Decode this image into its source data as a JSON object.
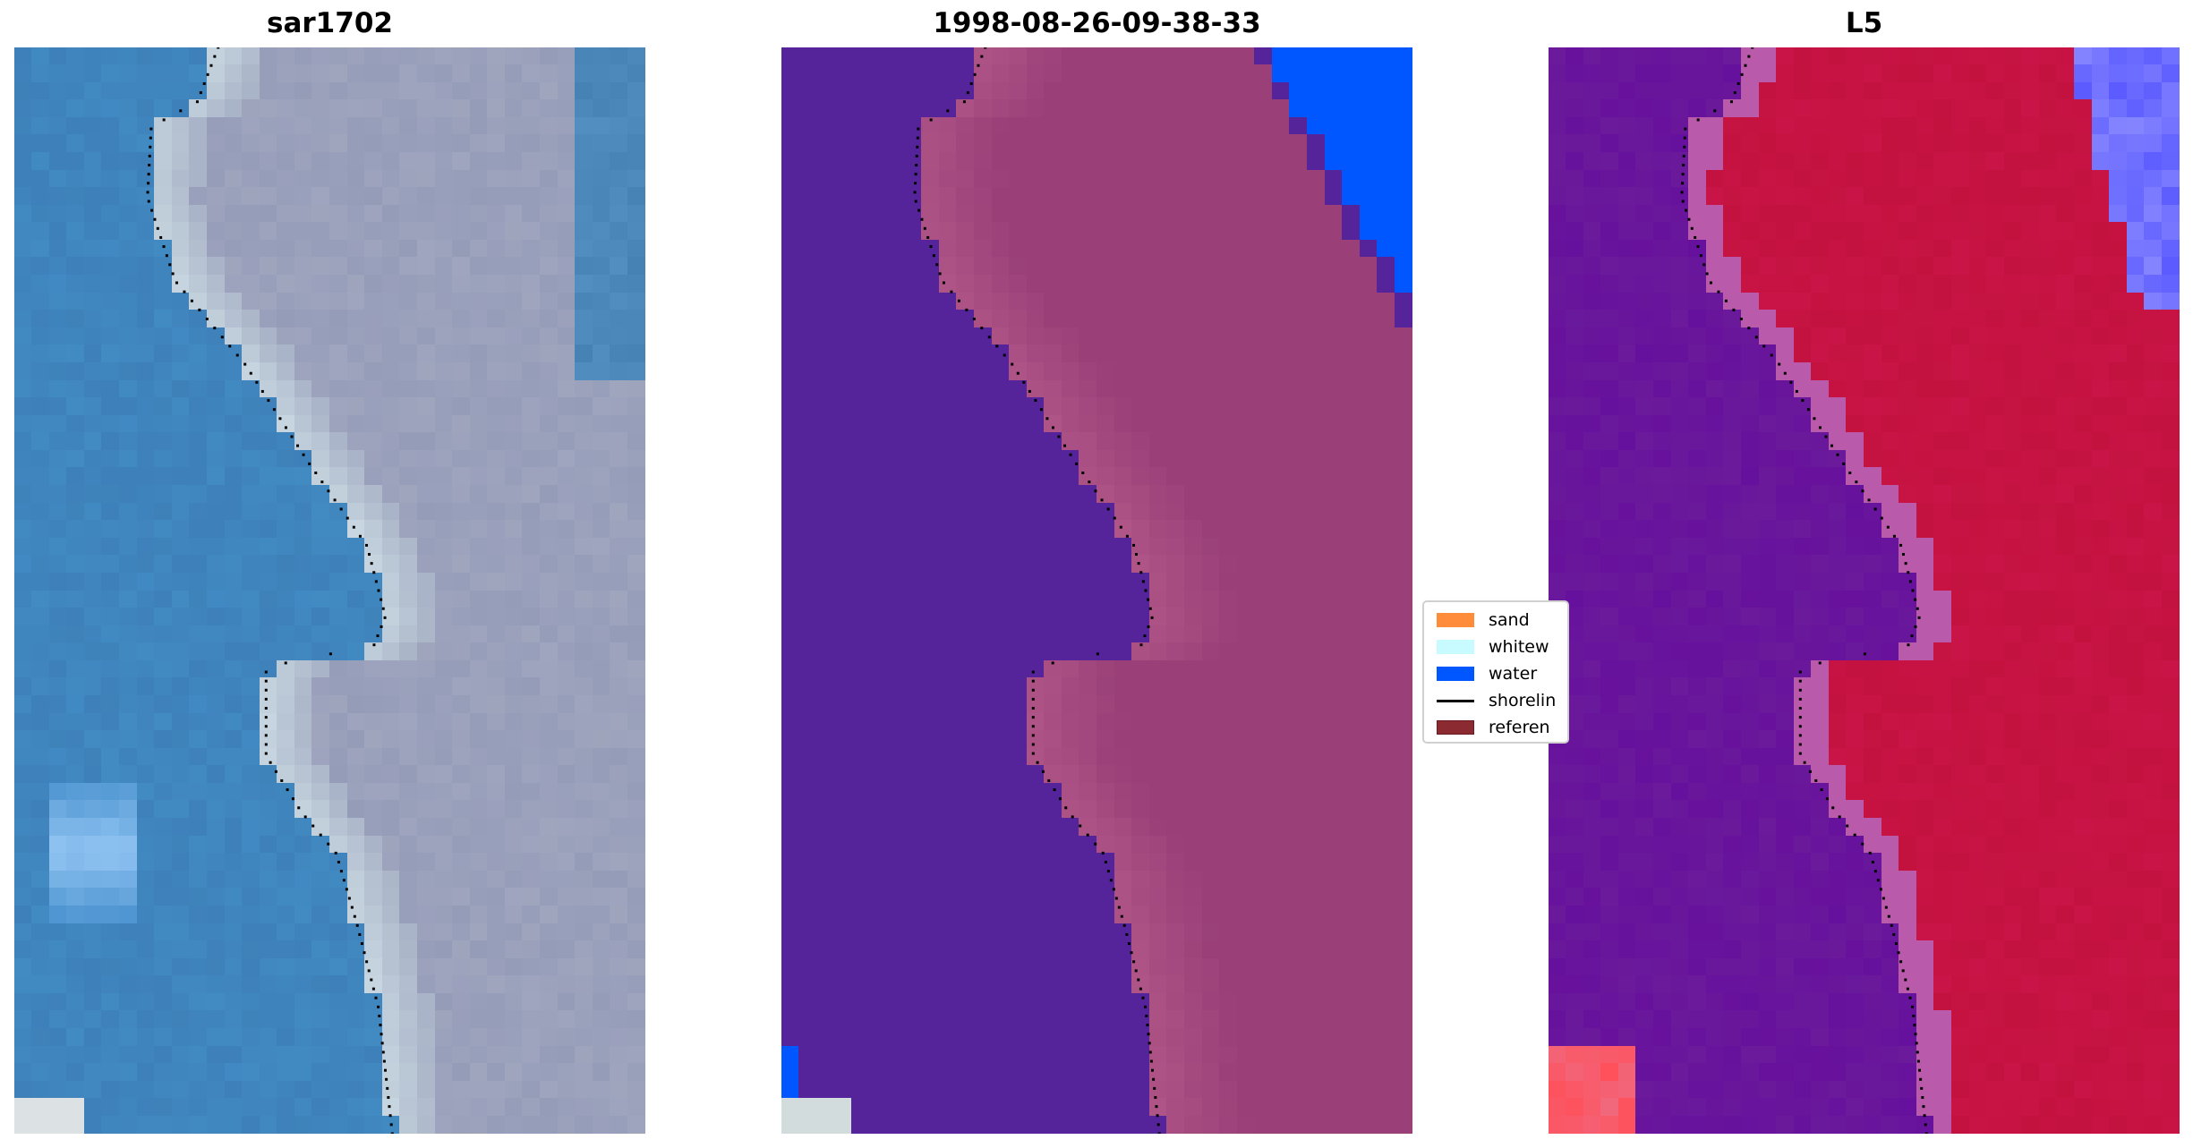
{
  "panels": [
    {
      "title": "sar1702",
      "kind": "rgb"
    },
    {
      "title": "1998-08-26-09-38-33",
      "kind": "classified"
    },
    {
      "title": "L5",
      "kind": "index"
    }
  ],
  "legend": {
    "items": [
      {
        "label": "sand",
        "color": "#ff8c3a"
      },
      {
        "label": "whitew",
        "color": "#c8fbff"
      },
      {
        "label": "water",
        "color": "#0057ff"
      },
      {
        "label": "shorelin",
        "color": "#000000",
        "type": "line"
      },
      {
        "label": "referen",
        "color": "#8b2a30"
      }
    ]
  },
  "colors": {
    "water_class": "#55249a",
    "sand_class": "#9a3f78",
    "ocean_blue": "#0057ff",
    "index_low": "#6a1a9a",
    "index_high": "#c0103a"
  }
}
